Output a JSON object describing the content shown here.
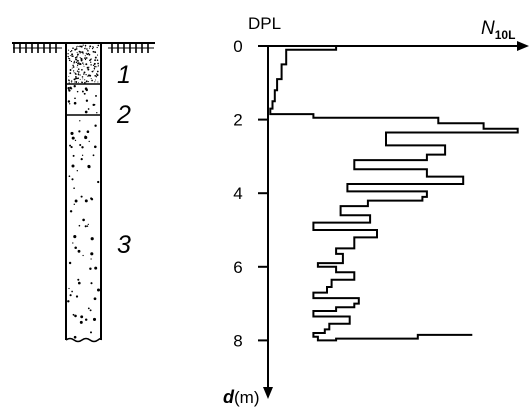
{
  "log": {
    "layers": [
      {
        "number": "1",
        "pattern": "dense-gravel"
      },
      {
        "number": "2",
        "pattern": "sparse-gravel"
      },
      {
        "number": "3",
        "pattern": "sparse-gravel"
      }
    ],
    "ground_symbol": "ground-surface-hatch"
  },
  "chart": {
    "title": "DPL",
    "x_axis": {
      "symbol": "N",
      "subscript": "10L"
    },
    "y_axis": {
      "symbol": "d",
      "unit": "(m)"
    },
    "y_ticks": [
      "0",
      "2",
      "4",
      "6",
      "8"
    ]
  },
  "chart_data": {
    "type": "line",
    "title": "DPL",
    "xlabel": "N10L",
    "ylabel": "d(m)",
    "ylim": [
      0,
      9
    ],
    "y_direction": "downward",
    "x_tick_labels": "none",
    "series": [
      {
        "x": [
          0,
          30,
          30,
          8,
          8,
          6,
          6,
          4,
          4,
          3,
          3,
          2,
          2,
          1,
          1,
          20,
          20,
          75,
          75,
          95,
          95,
          110,
          110,
          52,
          52,
          78,
          78,
          70,
          70,
          38,
          38,
          70,
          70,
          86,
          86,
          35,
          35,
          70,
          70,
          68,
          68,
          44,
          44,
          32,
          32,
          45,
          45,
          20,
          20,
          48,
          48,
          38,
          38,
          30,
          30,
          33,
          33,
          22,
          22,
          30,
          30,
          38,
          38,
          28,
          28,
          26,
          26,
          20,
          20,
          40,
          40,
          38,
          38,
          30,
          30,
          20,
          20,
          36,
          36,
          27,
          27,
          25,
          25,
          20,
          20,
          22,
          22,
          30,
          30,
          66,
          66,
          90
        ],
        "y": [
          0,
          0,
          0.1,
          0.1,
          0.5,
          0.5,
          0.9,
          0.9,
          1.2,
          1.2,
          1.5,
          1.5,
          1.7,
          1.7,
          1.85,
          1.85,
          1.95,
          1.95,
          2.1,
          2.1,
          2.25,
          2.25,
          2.35,
          2.35,
          2.7,
          2.7,
          2.95,
          2.95,
          3.1,
          3.1,
          3.35,
          3.35,
          3.55,
          3.55,
          3.75,
          3.75,
          3.95,
          3.95,
          4.1,
          4.1,
          4.2,
          4.2,
          4.35,
          4.35,
          4.6,
          4.6,
          4.8,
          4.8,
          5.0,
          5.0,
          5.2,
          5.2,
          5.5,
          5.5,
          5.65,
          5.65,
          5.9,
          5.9,
          6.0,
          6.0,
          6.15,
          6.15,
          6.35,
          6.35,
          6.55,
          6.55,
          6.7,
          6.7,
          6.85,
          6.85,
          7.0,
          7.0,
          7.1,
          7.1,
          7.2,
          7.2,
          7.35,
          7.35,
          7.55,
          7.55,
          7.7,
          7.7,
          7.8,
          7.8,
          7.9,
          7.9,
          8.0,
          8.0,
          7.95,
          7.95,
          7.85,
          7.85
        ]
      }
    ]
  }
}
